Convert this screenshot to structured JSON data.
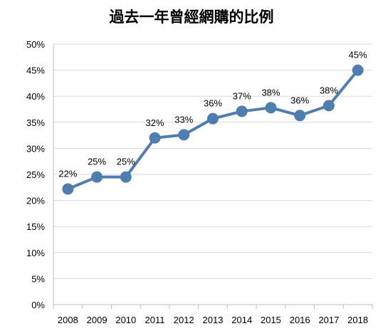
{
  "chart_data": {
    "type": "line",
    "title": "過去一年曾經網購的比例",
    "xlabel": "",
    "ylabel": "",
    "x": [
      "2008",
      "2009",
      "2010",
      "2011",
      "2012",
      "2013",
      "2014",
      "2015",
      "2016",
      "2017",
      "2018"
    ],
    "values": [
      0.222,
      0.245,
      0.245,
      0.32,
      0.326,
      0.357,
      0.371,
      0.378,
      0.363,
      0.382,
      0.45
    ],
    "data_labels": [
      "22%",
      "25%",
      "25%",
      "32%",
      "33%",
      "36%",
      "37%",
      "38%",
      "36%",
      "38%",
      "45%"
    ],
    "y_ticks": [
      0,
      0.05,
      0.1,
      0.15,
      0.2,
      0.25,
      0.3,
      0.35,
      0.4,
      0.45,
      0.5
    ],
    "y_tick_labels": [
      "0%",
      "5%",
      "10%",
      "15%",
      "20%",
      "25%",
      "30%",
      "35%",
      "40%",
      "45%",
      "50%"
    ],
    "ylim": [
      0,
      0.5
    ],
    "grid": "horizontal",
    "legend": "none",
    "series_color": "#4F7DAF",
    "gridline_color": "#D9D9D9"
  }
}
